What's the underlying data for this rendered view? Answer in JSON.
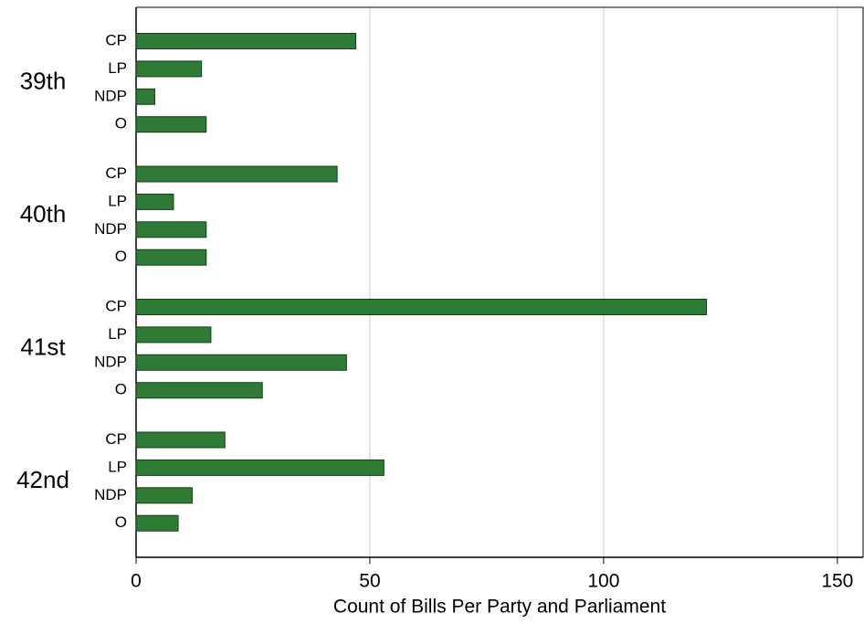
{
  "chart_data": {
    "type": "bar",
    "orientation": "horizontal",
    "x_label": "Count of Bills Per Party and Parliament",
    "groups": [
      {
        "name": "39th",
        "categories": [
          "CP",
          "LP",
          "NDP",
          "O"
        ],
        "values": [
          47,
          14,
          4,
          15
        ]
      },
      {
        "name": "40th",
        "categories": [
          "CP",
          "LP",
          "NDP",
          "O"
        ],
        "values": [
          43,
          8,
          15,
          15
        ]
      },
      {
        "name": "41st",
        "categories": [
          "CP",
          "LP",
          "NDP",
          "O"
        ],
        "values": [
          122,
          16,
          45,
          27
        ]
      },
      {
        "name": "42nd",
        "categories": [
          "CP",
          "LP",
          "NDP",
          "O"
        ],
        "values": [
          19,
          53,
          12,
          9
        ]
      }
    ],
    "color": "#2f7a35",
    "xlim": [
      0,
      155.5
    ],
    "xticks": [
      0,
      50,
      100,
      150
    ],
    "grid": true
  }
}
